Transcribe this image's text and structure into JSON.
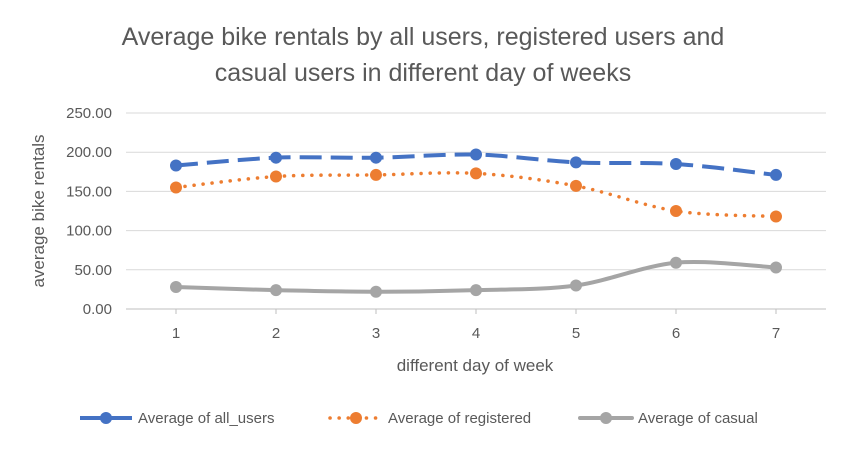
{
  "chart_data": {
    "type": "line",
    "title_lines": [
      "Average bike rentals by all users, registered users and",
      "casual users in different day of weeks"
    ],
    "xlabel": "different day of week",
    "ylabel": "average bike rentals",
    "categories": [
      "1",
      "2",
      "3",
      "4",
      "5",
      "6",
      "7"
    ],
    "ylim": [
      0,
      250
    ],
    "yticks": [
      "0.00",
      "50.00",
      "100.00",
      "150.00",
      "200.00",
      "250.00"
    ],
    "ytick_values": [
      0,
      50,
      100,
      150,
      200,
      250
    ],
    "grid": true,
    "legend_position": "bottom",
    "series": [
      {
        "name": "Average of all_users",
        "values": [
          183,
          193,
          193,
          197,
          187,
          185,
          171
        ],
        "color": "#4472C4",
        "line_style": "dashed"
      },
      {
        "name": "Average of registered",
        "values": [
          155,
          169,
          171,
          173,
          157,
          125,
          118
        ],
        "color": "#ED7D31",
        "line_style": "dotted"
      },
      {
        "name": "Average of casual",
        "values": [
          28,
          24,
          22,
          24,
          30,
          59,
          53
        ],
        "color": "#A5A5A5",
        "line_style": "solid"
      }
    ]
  }
}
